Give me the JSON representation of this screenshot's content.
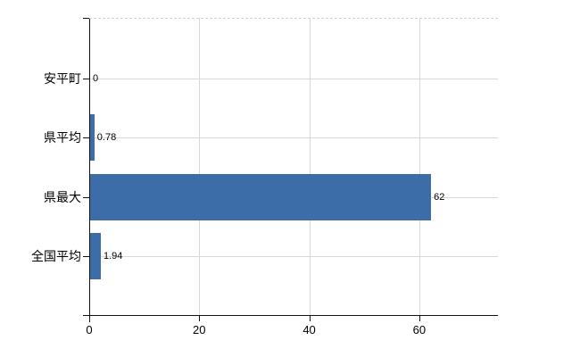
{
  "chart_data": {
    "type": "bar",
    "orientation": "horizontal",
    "title": "",
    "xlabel": "",
    "ylabel": "",
    "categories": [
      "安平町",
      "県平均",
      "県最大",
      "全国平均"
    ],
    "values": [
      0,
      0.78,
      62,
      1.94
    ],
    "value_labels": [
      "0",
      "0.78",
      "62",
      "1.94"
    ],
    "xtick_labels": [
      "0",
      "20",
      "40",
      "60"
    ],
    "xtick_values": [
      0,
      20,
      40,
      60
    ],
    "xlim": [
      0,
      74.3
    ],
    "grid": "on",
    "legend": "none",
    "colors": {
      "bar": "#3d6da8",
      "gridline": "#d6dbd2",
      "top_border": "#d2d2d2",
      "axis": "#111111",
      "text": "#000000"
    }
  }
}
